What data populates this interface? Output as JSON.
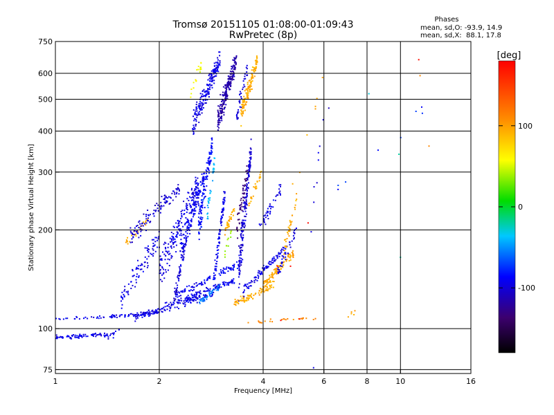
{
  "chart_data": {
    "type": "scatter",
    "title": "Tromsø 20151105 01:08:00-01:09:43",
    "subtitle": "RwPretec (8p)",
    "xlabel": "Frequency [MHz]",
    "ylabel": "Stationary phase Virtual Height [km]",
    "x_scale": "log",
    "y_scale": "log",
    "xlim": [
      1,
      16
    ],
    "ylim": [
      73,
      750
    ],
    "x_ticks": [
      1,
      2,
      4,
      6,
      8,
      10,
      16
    ],
    "x_tick_labels": [
      "1",
      "2",
      "4",
      "6",
      "8",
      "10",
      "16"
    ],
    "y_ticks": [
      75,
      100,
      200,
      300,
      400,
      500,
      600,
      750
    ],
    "y_tick_labels": [
      "75",
      "100",
      "200",
      "300",
      "400",
      "500",
      "600",
      "750"
    ],
    "grid": true,
    "legend": {
      "heading": "Phases",
      "lines": [
        "mean, sd,O: -93.9, 14.9",
        "mean, sd,X:  88.1, 17.8"
      ]
    },
    "colorbar": {
      "label": "[deg]",
      "range": [
        -180,
        180
      ],
      "ticks": [
        100,
        0,
        -100
      ],
      "tick_labels": [
        "100",
        "0",
        "-100"
      ]
    },
    "traces": [
      {
        "x0": 1.0,
        "x1": 1.45,
        "y0": 94,
        "y1": 96,
        "phase": -95,
        "n": 80,
        "spread": 2
      },
      {
        "x0": 1.0,
        "x1": 1.5,
        "y0": 107,
        "y1": 109,
        "phase": -95,
        "n": 30,
        "spread": 2
      },
      {
        "x0": 1.45,
        "x1": 2.0,
        "y0": 109,
        "y1": 112,
        "phase": -95,
        "n": 60,
        "spread": 2
      },
      {
        "x0": 1.7,
        "x1": 2.9,
        "y0": 108,
        "y1": 128,
        "phase": -95,
        "n": 120,
        "spread": 4
      },
      {
        "x0": 2.0,
        "x1": 3.3,
        "y0": 115,
        "y1": 140,
        "phase": -93,
        "n": 120,
        "spread": 4
      },
      {
        "x0": 2.2,
        "x1": 3.5,
        "y0": 125,
        "y1": 160,
        "phase": -90,
        "n": 110,
        "spread": 5
      },
      {
        "x0": 2.6,
        "x1": 3.0,
        "y0": 120,
        "y1": 135,
        "phase": -55,
        "n": 40,
        "spread": 4
      },
      {
        "x0": 1.55,
        "x1": 2.0,
        "y0": 125,
        "y1": 190,
        "phase": -95,
        "n": 90,
        "spread": 18
      },
      {
        "x0": 1.6,
        "x1": 1.85,
        "y0": 180,
        "y1": 215,
        "phase": 95,
        "n": 25,
        "spread": 10
      },
      {
        "x0": 1.65,
        "x1": 2.3,
        "y0": 190,
        "y1": 270,
        "phase": -100,
        "n": 110,
        "spread": 20
      },
      {
        "x0": 2.0,
        "x1": 2.6,
        "y0": 150,
        "y1": 280,
        "phase": -95,
        "n": 180,
        "spread": 30
      },
      {
        "x0": 2.2,
        "x1": 2.4,
        "y0": 120,
        "y1": 190,
        "phase": -100,
        "n": 70,
        "spread": 10
      },
      {
        "x0": 2.3,
        "x1": 2.7,
        "y0": 170,
        "y1": 290,
        "phase": -92,
        "n": 150,
        "spread": 25
      },
      {
        "x0": 2.6,
        "x1": 2.85,
        "y0": 200,
        "y1": 370,
        "phase": -85,
        "n": 120,
        "spread": 40
      },
      {
        "x0": 2.75,
        "x1": 2.9,
        "y0": 220,
        "y1": 330,
        "phase": -40,
        "n": 35,
        "spread": 20
      },
      {
        "x0": 2.9,
        "x1": 3.1,
        "y0": 150,
        "y1": 260,
        "phase": -92,
        "n": 80,
        "spread": 20
      },
      {
        "x0": 3.1,
        "x1": 3.3,
        "y0": 200,
        "y1": 230,
        "phase": 95,
        "n": 35,
        "spread": 10
      },
      {
        "x0": 3.1,
        "x1": 3.25,
        "y0": 170,
        "y1": 200,
        "phase": 40,
        "n": 12,
        "spread": 8
      },
      {
        "x0": 3.4,
        "x1": 3.7,
        "y0": 150,
        "y1": 360,
        "phase": -100,
        "n": 180,
        "spread": 40
      },
      {
        "x0": 3.35,
        "x1": 3.6,
        "y0": 200,
        "y1": 300,
        "phase": -135,
        "n": 50,
        "spread": 30
      },
      {
        "x0": 3.6,
        "x1": 3.95,
        "y0": 230,
        "y1": 300,
        "phase": 95,
        "n": 30,
        "spread": 15
      },
      {
        "x0": 3.9,
        "x1": 4.5,
        "y0": 200,
        "y1": 270,
        "phase": -95,
        "n": 45,
        "spread": 15
      },
      {
        "x0": 2.5,
        "x1": 3.0,
        "y0": 420,
        "y1": 660,
        "phase": -95,
        "n": 200,
        "spread": 60
      },
      {
        "x0": 2.95,
        "x1": 3.35,
        "y0": 430,
        "y1": 660,
        "phase": -115,
        "n": 230,
        "spread": 60
      },
      {
        "x0": 3.35,
        "x1": 3.6,
        "y0": 440,
        "y1": 620,
        "phase": -100,
        "n": 40,
        "spread": 50
      },
      {
        "x0": 3.45,
        "x1": 3.85,
        "y0": 450,
        "y1": 660,
        "phase": 95,
        "n": 140,
        "spread": 50
      },
      {
        "x0": 2.45,
        "x1": 2.65,
        "y0": 500,
        "y1": 650,
        "phase": 60,
        "n": 20,
        "spread": 40
      },
      {
        "x0": 3.3,
        "x1": 4.3,
        "y0": 120,
        "y1": 135,
        "phase": 95,
        "n": 80,
        "spread": 5
      },
      {
        "x0": 4.0,
        "x1": 4.9,
        "y0": 135,
        "y1": 170,
        "phase": 95,
        "n": 110,
        "spread": 8
      },
      {
        "x0": 3.5,
        "x1": 4.6,
        "y0": 130,
        "y1": 175,
        "phase": -95,
        "n": 90,
        "spread": 6
      },
      {
        "x0": 4.4,
        "x1": 5.0,
        "y0": 150,
        "y1": 200,
        "phase": -95,
        "n": 40,
        "spread": 12
      },
      {
        "x0": 4.6,
        "x1": 5.0,
        "y0": 170,
        "y1": 250,
        "phase": 95,
        "n": 35,
        "spread": 15
      },
      {
        "x0": 3.6,
        "x1": 5.7,
        "y0": 104,
        "y1": 108,
        "phase": 110,
        "n": 25,
        "spread": 2
      },
      {
        "x0": 5.5,
        "x1": 6.1,
        "y0": 200,
        "y1": 520,
        "phase": -95,
        "n": 8,
        "spread": 40
      },
      {
        "x0": 4.5,
        "x1": 6.0,
        "y0": 180,
        "y1": 600,
        "phase": 100,
        "n": 8,
        "spread": 40
      },
      {
        "x0": 6.5,
        "x1": 12.5,
        "y0": 270,
        "y1": 520,
        "phase": -80,
        "n": 8,
        "spread": 40
      },
      {
        "x0": 7.0,
        "x1": 7.5,
        "y0": 108,
        "y1": 115,
        "phase": 100,
        "n": 5,
        "spread": 3
      },
      {
        "x0": 1.4,
        "x1": 1.55,
        "y0": 92,
        "y1": 100,
        "phase": -95,
        "n": 10,
        "spread": 3
      }
    ],
    "points": [
      {
        "x": 11.3,
        "y": 660,
        "phase": 175
      },
      {
        "x": 11.4,
        "y": 590,
        "phase": 110
      },
      {
        "x": 12.1,
        "y": 360,
        "phase": 110
      },
      {
        "x": 8.1,
        "y": 520,
        "phase": -30
      },
      {
        "x": 6.2,
        "y": 470,
        "phase": -110
      },
      {
        "x": 9.9,
        "y": 340,
        "phase": -20
      },
      {
        "x": 10.0,
        "y": 165,
        "phase": -20
      },
      {
        "x": 5.6,
        "y": 76,
        "phase": -95
      },
      {
        "x": 4.5,
        "y": 106,
        "phase": 175
      },
      {
        "x": 5.1,
        "y": 107,
        "phase": 175
      },
      {
        "x": 5.4,
        "y": 210,
        "phase": 175
      },
      {
        "x": 4.8,
        "y": 155,
        "phase": 175
      },
      {
        "x": 4.4,
        "y": 155,
        "phase": 175
      }
    ]
  }
}
